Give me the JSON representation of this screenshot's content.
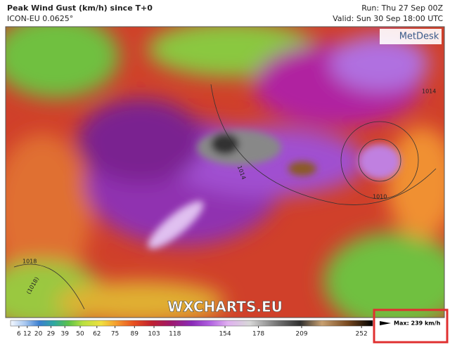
{
  "header": {
    "title": "Peak Wind Gust (km/h) since T+0",
    "model": "ICON-EU 0.0625°",
    "run": "Run: Thu 27 Sep 00Z",
    "valid": "Valid: Sun 30 Sep 18:00 UTC"
  },
  "logo": "MetDesk",
  "watermark": "WXCHARTS.EU",
  "isobar_labels": [
    "1014",
    "1010",
    "1018",
    "(1018)",
    "1014"
  ],
  "colorbar": {
    "range": [
      0,
      260
    ],
    "ticks": [
      6,
      12,
      20,
      29,
      39,
      50,
      62,
      75,
      89,
      103,
      118,
      154,
      178,
      209,
      252
    ]
  },
  "max_label": "Max: 239 km/h"
}
